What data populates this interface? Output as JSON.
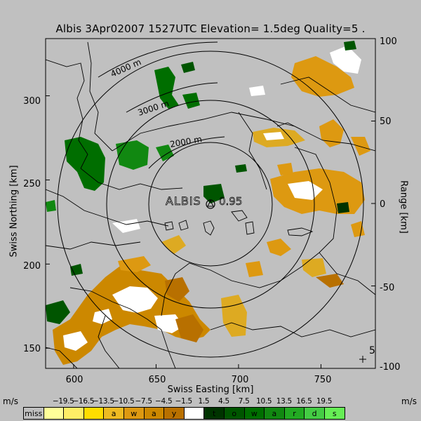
{
  "title": "Albis 3Apr02007 1527UTC Elevation= 1.5deg Quality=5 .",
  "y_axis": {
    "label": "Swiss Northing [km]",
    "ticks": [
      "300",
      "250",
      "200",
      "150"
    ],
    "values": [
      300,
      250,
      200,
      150
    ],
    "range": [
      138,
      334
    ]
  },
  "x_axis": {
    "label": "Swiss Easting [km]",
    "ticks": [
      "600",
      "650",
      "700",
      "750"
    ],
    "values": [
      600,
      650,
      700,
      750
    ],
    "range": [
      583,
      783
    ]
  },
  "range_axis": {
    "label": "Range [km]",
    "ticks": [
      "100",
      "50",
      "0",
      "-50",
      "-100"
    ],
    "values": [
      100,
      50,
      0,
      -50,
      -100
    ]
  },
  "range_rings": {
    "labels": [
      "4000 m",
      "3000 m",
      "2000 m"
    ]
  },
  "station": {
    "label": "ALBIS",
    "value_label": "0.95",
    "easting": 682,
    "northing": 237
  },
  "corner_label": "5",
  "legend": {
    "unit_left": "m/s",
    "unit_right": "m/s",
    "values": [
      "−19.5",
      "−16.5",
      "−13.5",
      "−10.5",
      "−7.5",
      "−4.5",
      "−1.5",
      "1.5",
      "4.5",
      "7.5",
      "10.5",
      "13.5",
      "16.5",
      "19.5"
    ],
    "boxes": [
      {
        "label": "miss",
        "color": "#c0c0c0"
      },
      {
        "label": "",
        "color": "#ffff99"
      },
      {
        "label": "",
        "color": "#ffee66"
      },
      {
        "label": "",
        "color": "#ffdd00"
      },
      {
        "label": "a",
        "color": "#eebb22"
      },
      {
        "label": "w",
        "color": "#dd9911"
      },
      {
        "label": "a",
        "color": "#cc8800"
      },
      {
        "label": "y",
        "color": "#b87000"
      },
      {
        "label": "",
        "color": "#ffffff"
      },
      {
        "label": "t",
        "color": "#003300"
      },
      {
        "label": "o",
        "color": "#005500"
      },
      {
        "label": "w",
        "color": "#006e00"
      },
      {
        "label": "a",
        "color": "#118811"
      },
      {
        "label": "r",
        "color": "#22aa22"
      },
      {
        "label": "d",
        "color": "#44cc44"
      },
      {
        "label": "s",
        "color": "#66ee55"
      }
    ]
  }
}
